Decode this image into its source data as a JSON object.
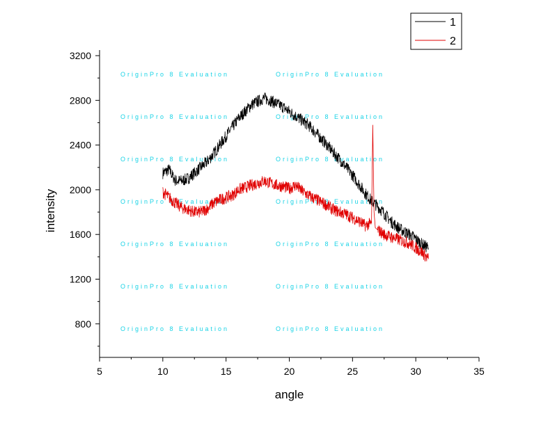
{
  "chart_data": {
    "type": "line",
    "xlabel": "angle",
    "ylabel": "intensity",
    "xlim": [
      5,
      35
    ],
    "ylim": [
      500,
      3250
    ],
    "xticks": [
      5,
      10,
      15,
      20,
      25,
      30,
      35
    ],
    "yticks": [
      800,
      1200,
      1600,
      2000,
      2400,
      2800,
      3200
    ],
    "grid": false,
    "legend_position": "top-right",
    "watermark_text": "OriginPro 8 Evaluation",
    "series": [
      {
        "name": "1",
        "color": "#000000",
        "x": [
          10,
          10.5,
          11,
          11.5,
          12,
          12.5,
          13,
          13.5,
          14,
          14.5,
          15,
          15.5,
          16,
          16.5,
          17,
          17.5,
          18,
          18.5,
          19,
          19.5,
          20,
          20.5,
          21,
          21.5,
          22,
          22.5,
          23,
          23.5,
          24,
          24.5,
          25,
          25.5,
          26,
          26.5,
          27,
          27.5,
          28,
          28.5,
          29,
          29.5,
          30,
          30.5,
          31
        ],
        "y": [
          2150,
          2180,
          2080,
          2080,
          2100,
          2150,
          2200,
          2250,
          2320,
          2400,
          2480,
          2560,
          2640,
          2700,
          2760,
          2790,
          2820,
          2800,
          2770,
          2740,
          2700,
          2660,
          2620,
          2580,
          2520,
          2460,
          2400,
          2330,
          2270,
          2200,
          2130,
          2050,
          1970,
          1900,
          1850,
          1790,
          1720,
          1670,
          1630,
          1600,
          1560,
          1510,
          1480
        ]
      },
      {
        "name": "2",
        "color": "#e00000",
        "x": [
          10,
          10.5,
          11,
          11.5,
          12,
          12.5,
          13,
          13.5,
          14,
          14.5,
          15,
          15.5,
          16,
          16.5,
          17,
          17.5,
          18,
          18.5,
          19,
          19.5,
          20,
          20.5,
          21,
          21.5,
          22,
          22.5,
          23,
          23.5,
          24,
          24.5,
          25,
          25.5,
          26,
          26.5,
          26.6,
          26.7,
          26.8,
          27,
          27.5,
          28,
          28.5,
          29,
          29.5,
          30,
          30.5,
          31
        ],
        "y": [
          1980,
          1930,
          1880,
          1840,
          1820,
          1800,
          1800,
          1830,
          1880,
          1910,
          1930,
          1950,
          2000,
          2020,
          2040,
          2060,
          2080,
          2060,
          2040,
          2030,
          2010,
          2040,
          1990,
          1950,
          1920,
          1890,
          1860,
          1820,
          1800,
          1780,
          1750,
          1720,
          1680,
          1700,
          2580,
          1800,
          1660,
          1640,
          1600,
          1580,
          1560,
          1540,
          1520,
          1480,
          1440,
          1380
        ]
      }
    ]
  }
}
